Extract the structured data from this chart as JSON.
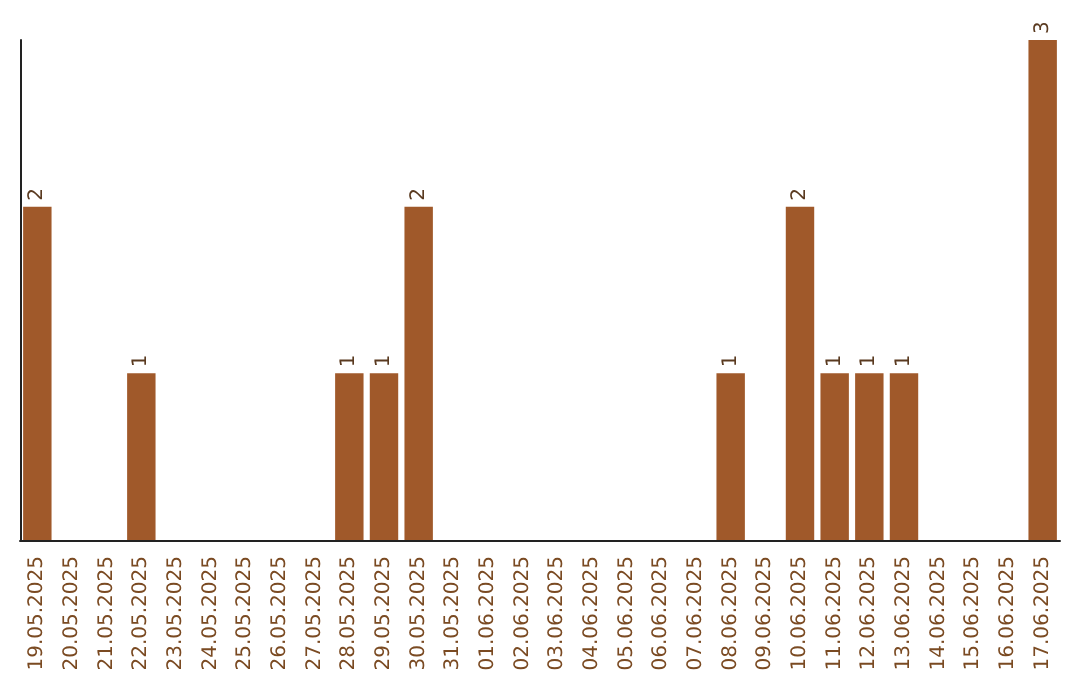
{
  "chart_data": {
    "type": "bar",
    "categories": [
      "19.05.2025",
      "20.05.2025",
      "21.05.2025",
      "22.05.2025",
      "23.05.2025",
      "24.05.2025",
      "25.05.2025",
      "26.05.2025",
      "27.05.2025",
      "28.05.2025",
      "29.05.2025",
      "30.05.2025",
      "31.05.2025",
      "01.06.2025",
      "02.06.2025",
      "03.06.2025",
      "04.06.2025",
      "05.06.2025",
      "06.06.2025",
      "07.06.2025",
      "08.06.2025",
      "09.06.2025",
      "10.06.2025",
      "11.06.2025",
      "12.06.2025",
      "13.06.2025",
      "14.06.2025",
      "15.06.2025",
      "16.06.2025",
      "17.06.2025"
    ],
    "values": [
      2,
      0,
      0,
      1,
      0,
      0,
      0,
      0,
      0,
      1,
      1,
      2,
      0,
      0,
      0,
      0,
      0,
      0,
      0,
      0,
      1,
      0,
      2,
      1,
      1,
      1,
      0,
      0,
      0,
      3
    ],
    "value_labels": [
      "2",
      null,
      null,
      "1",
      null,
      null,
      null,
      null,
      null,
      "1",
      "1",
      "2",
      null,
      null,
      null,
      null,
      null,
      null,
      null,
      null,
      "1",
      null,
      "2",
      "1",
      "1",
      "1",
      null,
      null,
      null,
      "3"
    ],
    "color": "#a0592a",
    "tick_labels": "x"
  }
}
